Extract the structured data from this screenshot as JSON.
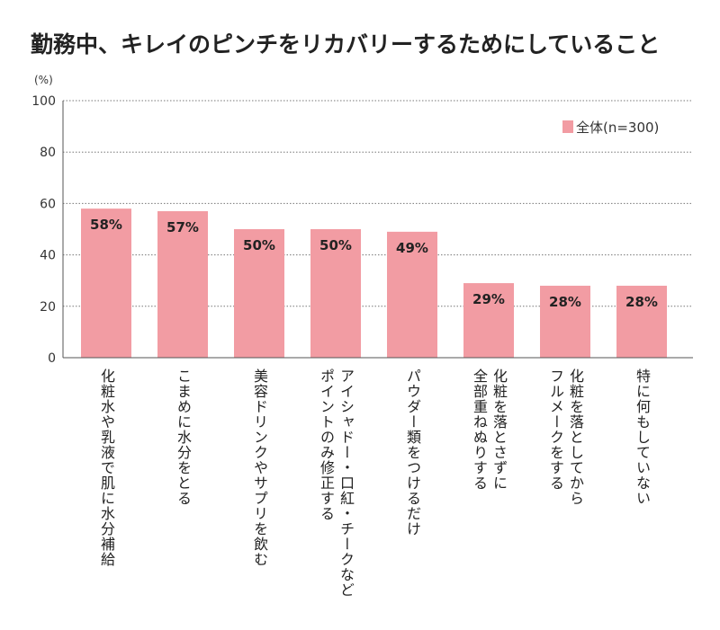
{
  "chart_data": {
    "type": "bar",
    "title": "勤務中、キレイのピンチをリカバリーするためにしていること",
    "ylabel": "(%)",
    "ylim": [
      0,
      100
    ],
    "yticks": [
      "0",
      "20",
      "40",
      "60",
      "80",
      "100"
    ],
    "grid": true,
    "legend_placement": "top-right",
    "categories": [
      "化粧水や乳液で肌に水分補給",
      "こまめに水分をとる",
      "美容ドリンクやサプリを飲む",
      "アイシャドー・口紅・チークなど\nポイントのみ修正する",
      "パウダー類をつけるだけ",
      "化粧を落とさずに\n全部重ねぬりする",
      "化粧を落としてから\nフルメークをする",
      "特に何もしていない"
    ],
    "series": [
      {
        "name": "全体(n=300)",
        "values": [
          58,
          57,
          50,
          50,
          49,
          29,
          28,
          28
        ],
        "color": "#f29ca3"
      }
    ],
    "data_labels": [
      "58%",
      "57%",
      "50%",
      "50%",
      "49%",
      "29%",
      "28%",
      "28%"
    ]
  }
}
